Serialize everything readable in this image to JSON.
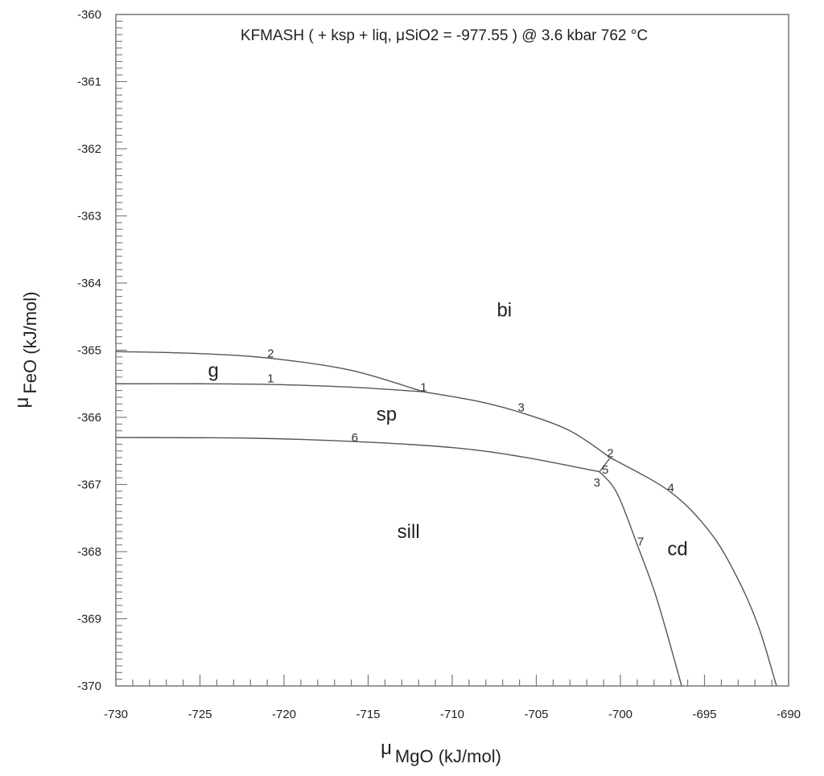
{
  "chart_data": {
    "type": "line",
    "title": "KFMASH  ( + ksp + liq, μSiO2 = -977.55 )  @ 3.6 kbar 762 °C",
    "xlabel": {
      "mu": "μ",
      "text": "MgO  (kJ/mol)"
    },
    "ylabel": {
      "mu": "μ",
      "text": "FeO (kJ/mol)"
    },
    "xlim": [
      -730,
      -690
    ],
    "ylim": [
      -370,
      -360
    ],
    "x_major_step": 5,
    "x_minor_step": 1,
    "y_major_step": 1,
    "y_minor_step": 0.1,
    "x_ticks": [
      "-730",
      "-725",
      "-720",
      "-715",
      "-710",
      "-705",
      "-700",
      "-695",
      "-690"
    ],
    "y_ticks": [
      "-360",
      "-361",
      "-362",
      "-363",
      "-364",
      "-365",
      "-366",
      "-367",
      "-368",
      "-369",
      "-370"
    ],
    "line_color": "#555555",
    "series": [
      {
        "name": "g-bi",
        "points": [
          [
            -730,
            -365.02
          ],
          [
            -725,
            -365.05
          ],
          [
            -720.8,
            -365.12
          ],
          [
            -716,
            -365.3
          ],
          [
            -711.7,
            -365.62
          ]
        ]
      },
      {
        "name": "g-sp",
        "points": [
          [
            -730,
            -365.5
          ],
          [
            -725,
            -365.5
          ],
          [
            -720.8,
            -365.51
          ],
          [
            -716,
            -365.55
          ],
          [
            -711.7,
            -365.62
          ]
        ]
      },
      {
        "name": "bi-sp",
        "points": [
          [
            -711.7,
            -365.62
          ],
          [
            -708.5,
            -365.76
          ],
          [
            -705.9,
            -365.93
          ],
          [
            -703,
            -366.2
          ],
          [
            -700.6,
            -366.6
          ]
        ]
      },
      {
        "name": "sp-sill",
        "points": [
          [
            -730,
            -366.3
          ],
          [
            -722,
            -366.31
          ],
          [
            -715.8,
            -366.36
          ],
          [
            -710,
            -366.45
          ],
          [
            -705.8,
            -366.59
          ],
          [
            -701.24,
            -366.81
          ]
        ]
      },
      {
        "name": "bi-cd",
        "points": [
          [
            -700.6,
            -366.6
          ],
          [
            -697.03,
            -367.11
          ],
          [
            -694.64,
            -367.72
          ],
          [
            -693.01,
            -368.41
          ],
          [
            -691.77,
            -369.13
          ],
          [
            -690.72,
            -370
          ]
        ]
      },
      {
        "name": "sp-cd",
        "points": [
          [
            -701.24,
            -366.81
          ],
          [
            -700.6,
            -366.6
          ]
        ]
      },
      {
        "name": "sill-cd",
        "points": [
          [
            -701.24,
            -366.81
          ],
          [
            -700.2,
            -367.13
          ],
          [
            -698.95,
            -367.93
          ],
          [
            -697.8,
            -368.73
          ],
          [
            -696.36,
            -370
          ]
        ]
      }
    ],
    "phase_labels": [
      {
        "text": "bi",
        "x": -706.9,
        "y": -364.4
      },
      {
        "text": "g",
        "x": -724.2,
        "y": -365.3
      },
      {
        "text": "sp",
        "x": -713.9,
        "y": -365.95
      },
      {
        "text": "sill",
        "x": -712.6,
        "y": -367.7
      },
      {
        "text": "cd",
        "x": -696.6,
        "y": -367.96
      }
    ],
    "curve_labels": [
      {
        "text": "2",
        "x": -720.8,
        "y": -365.05
      },
      {
        "text": "1",
        "x": -720.8,
        "y": -365.42
      },
      {
        "text": "1",
        "x": -711.7,
        "y": -365.55
      },
      {
        "text": "3",
        "x": -705.9,
        "y": -365.85
      },
      {
        "text": "2",
        "x": -700.6,
        "y": -366.53
      },
      {
        "text": "5",
        "x": -700.9,
        "y": -366.78
      },
      {
        "text": "3",
        "x": -701.4,
        "y": -366.97
      },
      {
        "text": "4",
        "x": -697.0,
        "y": -367.05
      },
      {
        "text": "6",
        "x": -715.8,
        "y": -366.3
      },
      {
        "text": "7",
        "x": -698.8,
        "y": -367.85
      }
    ]
  }
}
